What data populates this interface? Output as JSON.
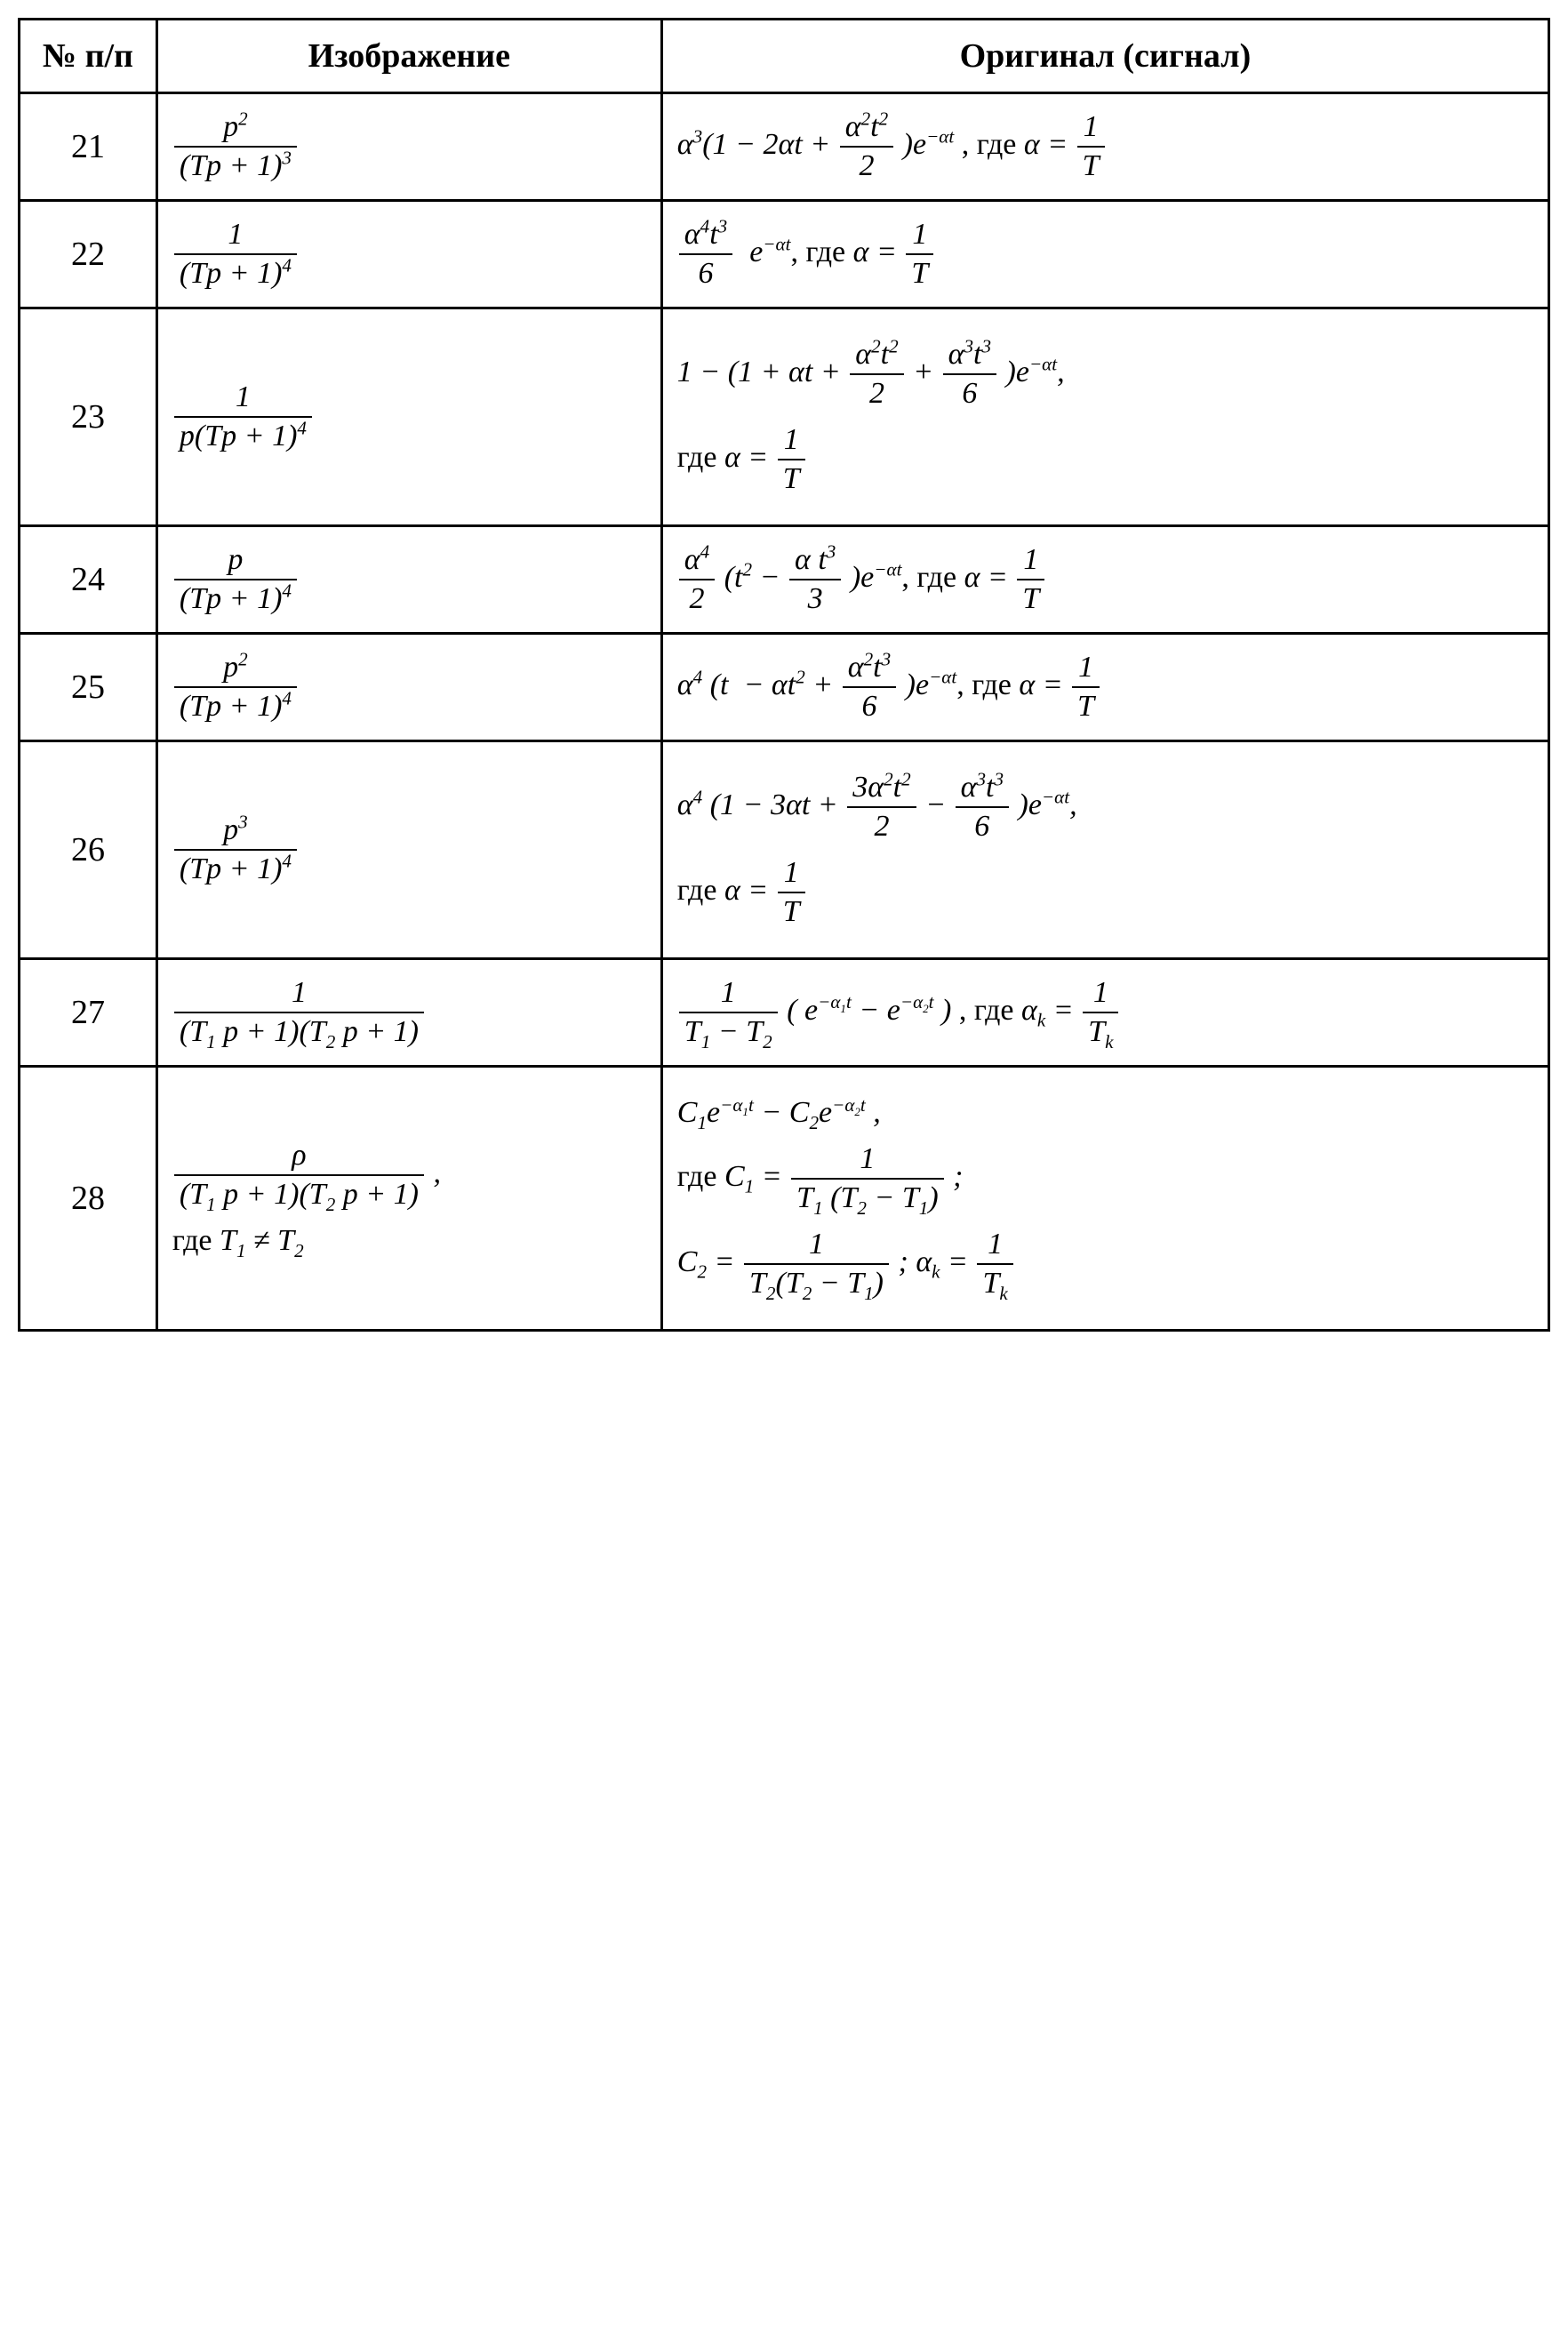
{
  "table": {
    "border_color": "#000000",
    "background_color": "#ffffff",
    "font_family": "Times New Roman",
    "base_fontsize_pt": 26,
    "header_fontsize_pt": 28,
    "columns": [
      "№ п/п",
      "Изображение",
      "Оригинал (сигнал)"
    ],
    "column_widths_percent": [
      9,
      33,
      58
    ],
    "rows": [
      {
        "num": "21",
        "image": {
          "numerator": "p²",
          "denominator": "(Tp + 1)³"
        },
        "original": {
          "expr_prefix": "α³(1 − 2α t + ",
          "inner_frac": {
            "numerator": "α² t²",
            "denominator": "2"
          },
          "expr_suffix": ") e^{−αt}",
          "where": "где α = 1/T"
        }
      },
      {
        "num": "22",
        "image": {
          "numerator": "1",
          "denominator": "(Tp + 1)⁴"
        },
        "original": {
          "frac": {
            "numerator": "α⁴ t³",
            "denominator": "6"
          },
          "suffix": " e^{−αt}",
          "where": "где α = 1/T"
        }
      },
      {
        "num": "23",
        "image": {
          "numerator": "1",
          "denominator": "p(Tp + 1)⁴"
        },
        "original": {
          "expr_prefix": "1 − (1 + α t + ",
          "frac1": {
            "numerator": "α² t²",
            "denominator": "2"
          },
          "mid": " + ",
          "frac2": {
            "numerator": "α³ t³",
            "denominator": "6"
          },
          "expr_suffix": ") e^{−αt}",
          "where_line": "где α = 1/T"
        }
      },
      {
        "num": "24",
        "image": {
          "numerator": "p",
          "denominator": "(Tp + 1)⁴"
        },
        "original": {
          "frac_outer": {
            "numerator": "α⁴",
            "denominator": "2"
          },
          "paren_open": " ( t² − ",
          "frac_inner": {
            "numerator": "α t³",
            "denominator": "3"
          },
          "paren_close": ") e^{−αt}",
          "where": "где α = 1/T"
        }
      },
      {
        "num": "25",
        "image": {
          "numerator": "p²",
          "denominator": "(Tp + 1)⁴"
        },
        "original": {
          "expr_prefix": "α⁴ ( t  − α t² + ",
          "frac": {
            "numerator": "α² t³",
            "denominator": "6"
          },
          "expr_suffix": ") e^{−αt}",
          "where": "где α = 1/T"
        }
      },
      {
        "num": "26",
        "image": {
          "numerator": "p³",
          "denominator": "(Tp + 1)⁴"
        },
        "original": {
          "expr_prefix": "α⁴ (1 − 3α t + ",
          "frac1": {
            "numerator": "3α² t²",
            "denominator": "2"
          },
          "mid": " − ",
          "frac2": {
            "numerator": "α³ t³",
            "denominator": "6"
          },
          "expr_suffix": ") e^{−αt}",
          "where_line": "где α = 1/T"
        }
      },
      {
        "num": "27",
        "image": {
          "numerator": "1",
          "denominator": "(T₁ p + 1)(T₂ p + 1)"
        },
        "original": {
          "frac": {
            "numerator": "1",
            "denominator": "T₁ − T₂"
          },
          "paren": " ( e^{−α₁ t} − e^{−α₂ t} )",
          "where": "где αₖ = 1/Tₖ"
        }
      },
      {
        "num": "28",
        "image": {
          "numerator": "ρ",
          "denominator": "(T₁ p + 1)(T₂ p + 1)",
          "trailing_comma": ",",
          "extra_line": "где T₁ ≠ T₂"
        },
        "original": {
          "line1": "C₁ e^{−α₁ t} − C₂ e^{−α₂ t} ,",
          "line2_prefix": "где C₁ = ",
          "line2_frac": {
            "numerator": "1",
            "denominator": "T₁ (T₂ − T₁)"
          },
          "line2_suffix": " ;",
          "line3_prefix": "C₂ = ",
          "line3_frac": {
            "numerator": "1",
            "denominator": "T₂ (T₂ − T₁)"
          },
          "line3_mid": " ; αₖ = ",
          "line3_frac2": {
            "numerator": "1",
            "denominator": "Tₖ"
          }
        }
      }
    ]
  }
}
